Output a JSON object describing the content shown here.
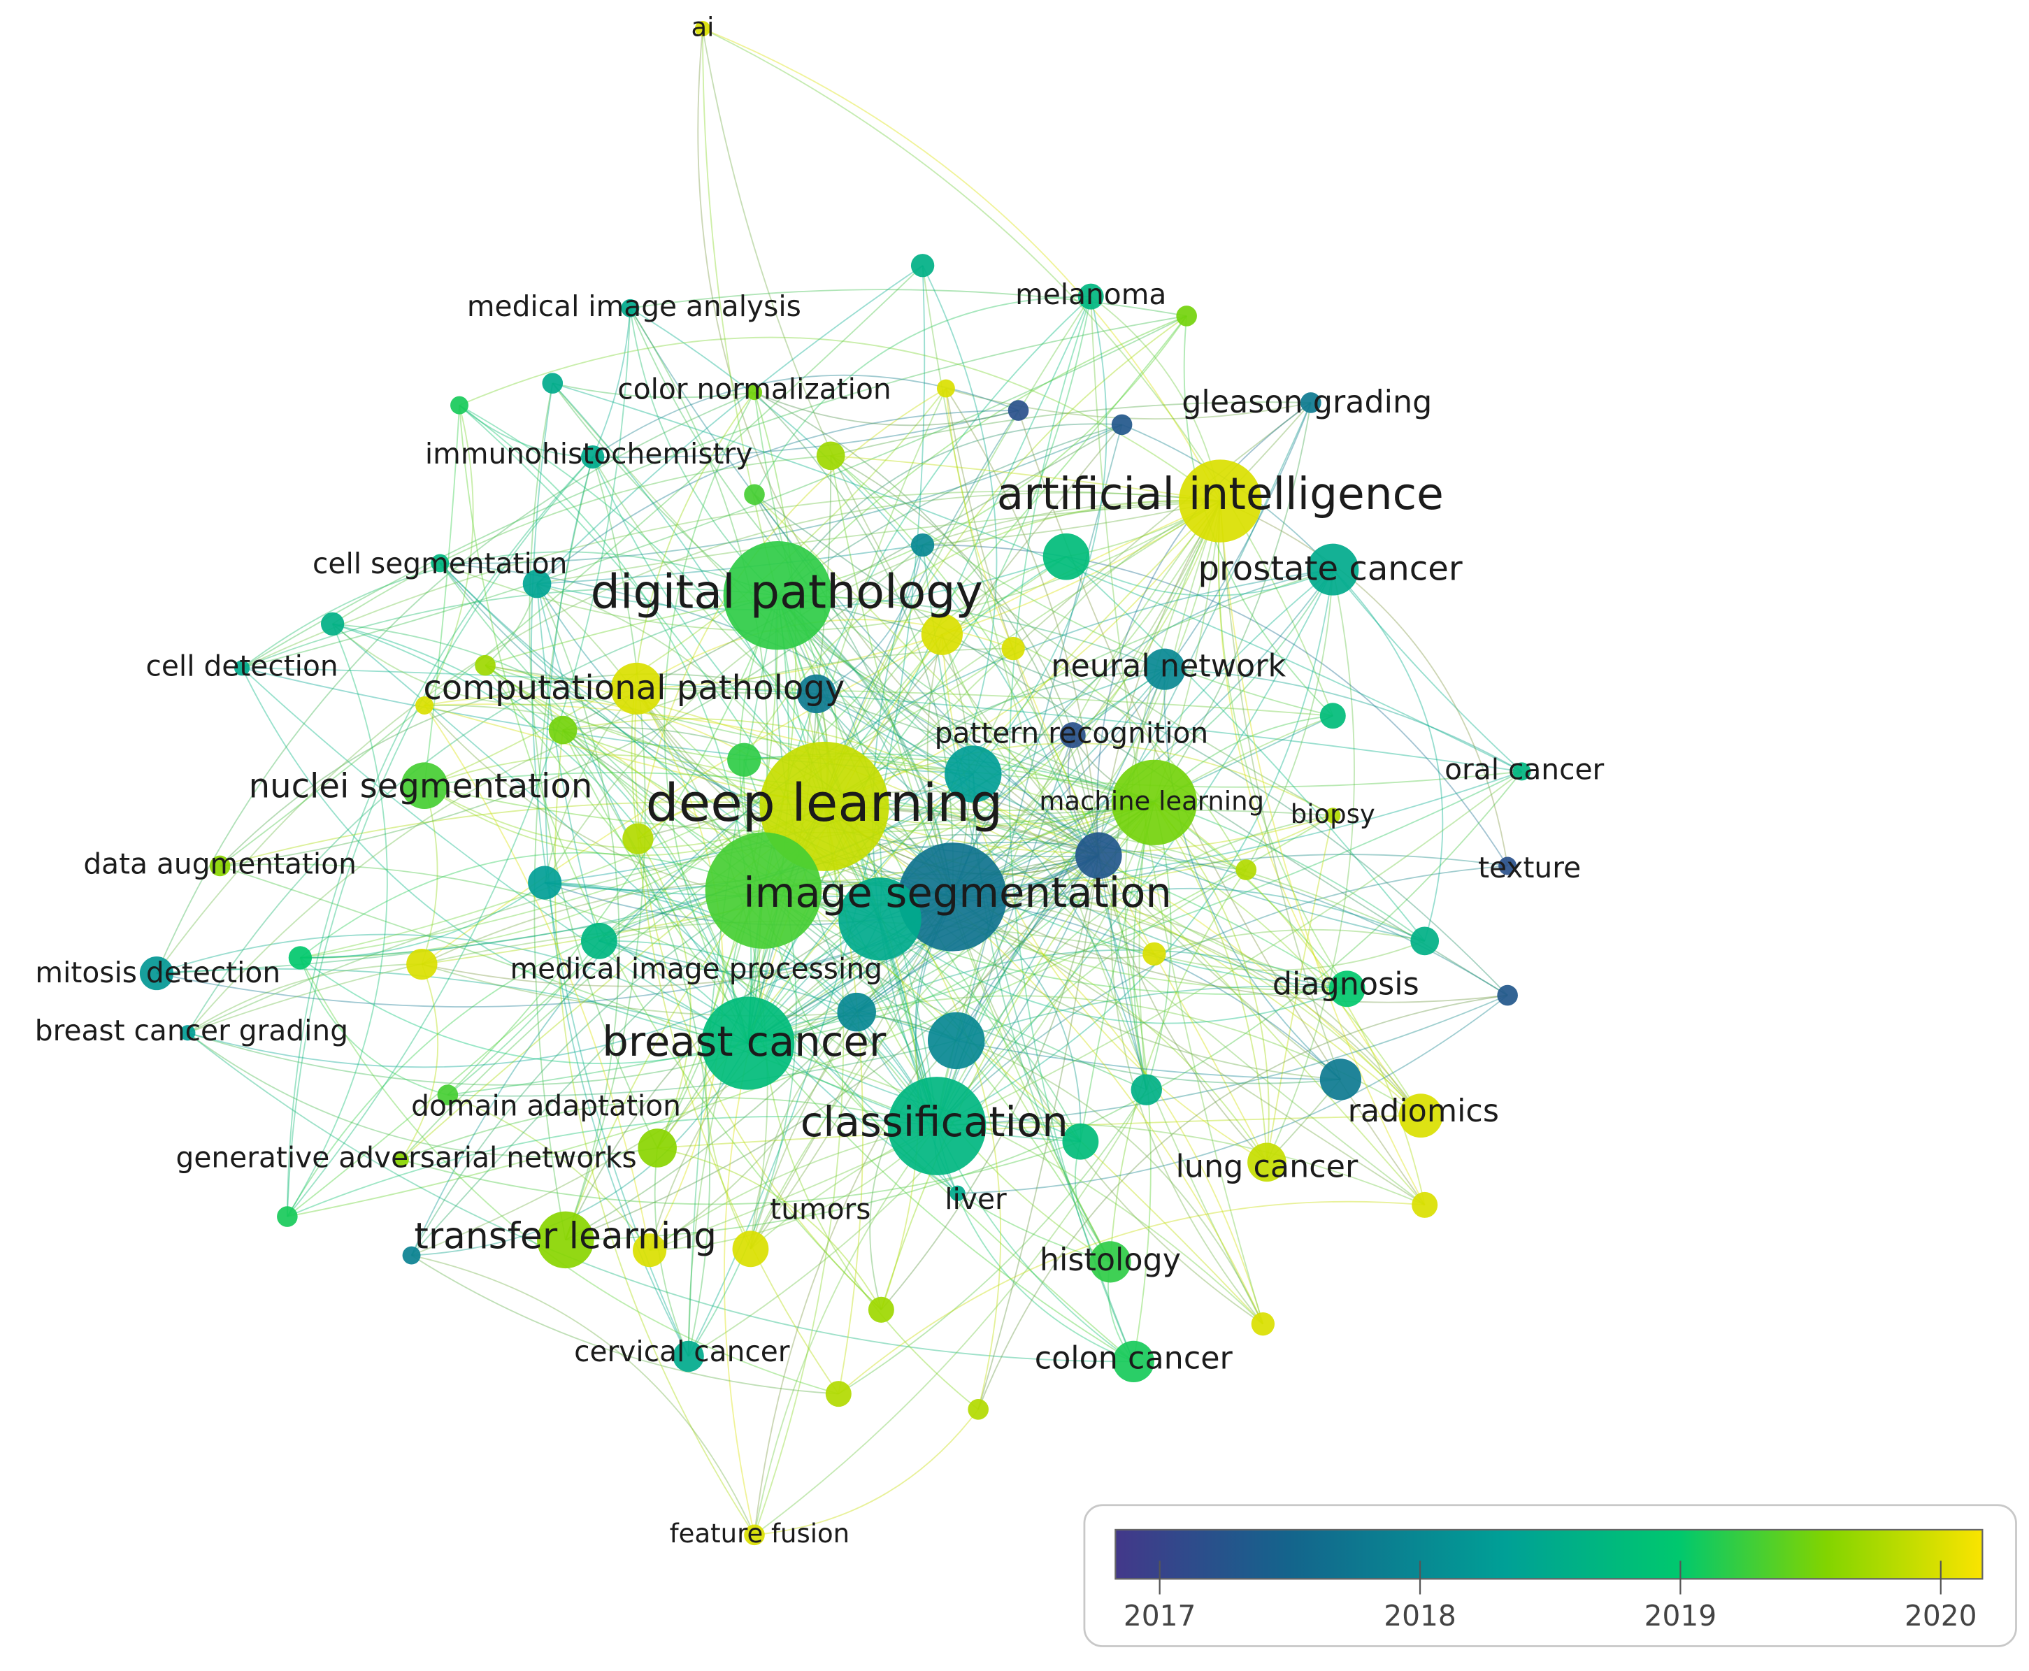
{
  "nodes": [
    {
      "label": "ai",
      "year": 2020
    },
    {
      "label": "medical image analysis",
      "year": 2018.5
    },
    {
      "label": "melanoma",
      "year": 2018.7
    },
    {
      "label": "color normalization",
      "year": 2019.5
    },
    {
      "label": "gleason grading",
      "year": 2017.8
    },
    {
      "label": "immunohistochemistry",
      "year": 2018.5
    },
    {
      "label": "artificial intelligence",
      "year": 2020
    },
    {
      "label": "cell segmentation",
      "year": 2018.7
    },
    {
      "label": "digital pathology",
      "year": 2019.2
    },
    {
      "label": "prostate cancer",
      "year": 2018.5
    },
    {
      "label": "cell detection",
      "year": 2018.5
    },
    {
      "label": "neural network",
      "year": 2018
    },
    {
      "label": "computational pathology",
      "year": 2020
    },
    {
      "label": "pattern recognition",
      "year": 2017.2
    },
    {
      "label": "oral cancer",
      "year": 2018.7
    },
    {
      "label": "nuclei segmentation",
      "year": 2019.3
    },
    {
      "label": "deep learning",
      "year": 2019.9
    },
    {
      "label": "machine learning",
      "year": 2019.5
    },
    {
      "label": "biopsy",
      "year": 2019.8
    },
    {
      "label": "data augmentation",
      "year": 2019.6
    },
    {
      "label": "texture",
      "year": 2017.2
    },
    {
      "label": "image segmentation",
      "year": 2017.7
    },
    {
      "label": "mitosis detection",
      "year": 2018.2
    },
    {
      "label": "medical image processing",
      "year": 2018.7
    },
    {
      "label": "diagnosis",
      "year": 2019
    },
    {
      "label": "breast cancer grading",
      "year": 2018.3
    },
    {
      "label": "breast cancer",
      "year": 2018.8
    },
    {
      "label": "radiomics",
      "year": 2020
    },
    {
      "label": "domain adaptation",
      "year": 2019.3
    },
    {
      "label": "classification",
      "year": 2018.7
    },
    {
      "label": "lung cancer",
      "year": 2019.9
    },
    {
      "label": "generative adversarial networks",
      "year": 2019.6
    },
    {
      "label": "tumors",
      "year": 2020
    },
    {
      "label": "liver",
      "year": 2018.5
    },
    {
      "label": "transfer learning",
      "year": 2019.6
    },
    {
      "label": "histology",
      "year": 2019.2
    },
    {
      "label": "cervical cancer",
      "year": 2018.5
    },
    {
      "label": "colon cancer",
      "year": 2019.1
    },
    {
      "label": "feature fusion",
      "year": 2020
    },
    {
      "year": 2018.6
    },
    {
      "year": 2019.5
    },
    {
      "year": 2019.1
    },
    {
      "year": 2018.5
    },
    {
      "year": 2020
    },
    {
      "year": 2017.2
    },
    {
      "year": 2017.3
    },
    {
      "year": 2019.7
    },
    {
      "year": 2019.3
    },
    {
      "year": 2018
    },
    {
      "year": 2018.8
    },
    {
      "year": 2018.4
    },
    {
      "year": 2018.6
    },
    {
      "year": 2020
    },
    {
      "year": 2020
    },
    {
      "year": 2019.7
    },
    {
      "year": 2017.8
    },
    {
      "year": 2020
    },
    {
      "year": 2019.5
    },
    {
      "year": 2018.8
    },
    {
      "year": 2019.2
    },
    {
      "year": 2018.3
    },
    {
      "year": 2019.8
    },
    {
      "year": 2017.3
    },
    {
      "year": 2019.3
    },
    {
      "year": 2018.5
    },
    {
      "year": 2019.8
    },
    {
      "year": 2018.3
    },
    {
      "year": 2019
    },
    {
      "year": 2020
    },
    {
      "year": 2020
    },
    {
      "year": 2018.6
    },
    {
      "year": 2018
    },
    {
      "year": 2018
    },
    {
      "year": 2017.3
    },
    {
      "year": 2018.6
    },
    {
      "year": 2017.8
    },
    {
      "year": 2018.8
    },
    {
      "year": 2019.6
    },
    {
      "year": 2020
    },
    {
      "year": 2019.1
    },
    {
      "year": 2017.9
    },
    {
      "year": 2019.7
    },
    {
      "year": 2020
    },
    {
      "year": 2020
    },
    {
      "year": 2019.8
    },
    {
      "year": 2019.8
    }
  ],
  "legend": {
    "range": [
      2016.83,
      2020.16
    ],
    "ticks": [
      2017,
      2018,
      2019,
      2020
    ]
  }
}
